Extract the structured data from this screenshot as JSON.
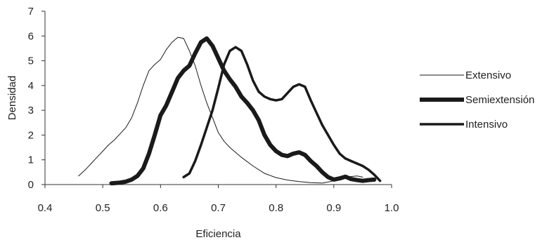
{
  "chart_data": {
    "type": "line",
    "title": "",
    "xlabel": "Eficiencia",
    "ylabel": "Densidad",
    "xlim": [
      0.4,
      1.0
    ],
    "ylim": [
      0,
      7
    ],
    "xticks": [
      "0.4",
      "0.5",
      "0.6",
      "0.7",
      "0.8",
      "0.9",
      "1.0"
    ],
    "yticks": [
      "0",
      "1",
      "2",
      "3",
      "4",
      "5",
      "6",
      "7"
    ],
    "grid": false,
    "legend_position": "right",
    "series": [
      {
        "name": "Extensivo",
        "color": "#1a1a1a",
        "weight": "thin",
        "x": [
          0.458,
          0.47,
          0.48,
          0.49,
          0.5,
          0.51,
          0.52,
          0.53,
          0.54,
          0.55,
          0.56,
          0.57,
          0.58,
          0.59,
          0.6,
          0.61,
          0.62,
          0.63,
          0.64,
          0.65,
          0.66,
          0.67,
          0.68,
          0.69,
          0.7,
          0.71,
          0.72,
          0.74,
          0.76,
          0.78,
          0.8,
          0.82,
          0.84,
          0.86,
          0.88,
          0.9,
          0.92,
          0.94,
          0.95
        ],
        "y": [
          0.35,
          0.6,
          0.85,
          1.1,
          1.35,
          1.6,
          1.8,
          2.05,
          2.3,
          2.7,
          3.3,
          4.0,
          4.6,
          4.85,
          5.05,
          5.45,
          5.75,
          5.95,
          5.9,
          5.4,
          4.8,
          4.0,
          3.3,
          2.7,
          2.1,
          1.75,
          1.5,
          1.1,
          0.75,
          0.45,
          0.28,
          0.18,
          0.12,
          0.08,
          0.06,
          0.15,
          0.3,
          0.35,
          0.3
        ]
      },
      {
        "name": "Semiextensión",
        "color": "#1a1a1a",
        "weight": "thick",
        "x": [
          0.515,
          0.53,
          0.54,
          0.55,
          0.56,
          0.57,
          0.58,
          0.59,
          0.6,
          0.61,
          0.62,
          0.63,
          0.64,
          0.65,
          0.66,
          0.67,
          0.68,
          0.69,
          0.7,
          0.71,
          0.72,
          0.73,
          0.74,
          0.75,
          0.76,
          0.77,
          0.78,
          0.79,
          0.8,
          0.81,
          0.82,
          0.83,
          0.84,
          0.85,
          0.86,
          0.87,
          0.88,
          0.89,
          0.9,
          0.91,
          0.92,
          0.93,
          0.94,
          0.95,
          0.96,
          0.97
        ],
        "y": [
          0.05,
          0.08,
          0.12,
          0.2,
          0.35,
          0.65,
          1.25,
          2.0,
          2.8,
          3.2,
          3.75,
          4.3,
          4.6,
          4.8,
          5.3,
          5.75,
          5.9,
          5.6,
          5.1,
          4.6,
          4.25,
          3.95,
          3.55,
          3.3,
          3.0,
          2.6,
          2.0,
          1.6,
          1.35,
          1.2,
          1.15,
          1.25,
          1.3,
          1.2,
          0.95,
          0.75,
          0.5,
          0.3,
          0.2,
          0.25,
          0.32,
          0.22,
          0.18,
          0.15,
          0.18,
          0.2
        ]
      },
      {
        "name": "Intensivo",
        "color": "#1a1a1a",
        "weight": "medium",
        "x": [
          0.64,
          0.65,
          0.66,
          0.67,
          0.68,
          0.69,
          0.7,
          0.71,
          0.72,
          0.73,
          0.74,
          0.75,
          0.76,
          0.77,
          0.78,
          0.79,
          0.8,
          0.81,
          0.82,
          0.83,
          0.84,
          0.85,
          0.86,
          0.87,
          0.88,
          0.89,
          0.9,
          0.91,
          0.92,
          0.93,
          0.94,
          0.95,
          0.96,
          0.97,
          0.98
        ],
        "y": [
          0.3,
          0.45,
          0.95,
          1.6,
          2.3,
          3.0,
          3.9,
          4.85,
          5.4,
          5.55,
          5.4,
          4.85,
          4.2,
          3.75,
          3.55,
          3.45,
          3.4,
          3.45,
          3.7,
          3.95,
          4.05,
          3.95,
          3.4,
          2.9,
          2.4,
          2.0,
          1.6,
          1.25,
          1.05,
          0.95,
          0.85,
          0.75,
          0.6,
          0.4,
          0.15
        ]
      }
    ]
  }
}
